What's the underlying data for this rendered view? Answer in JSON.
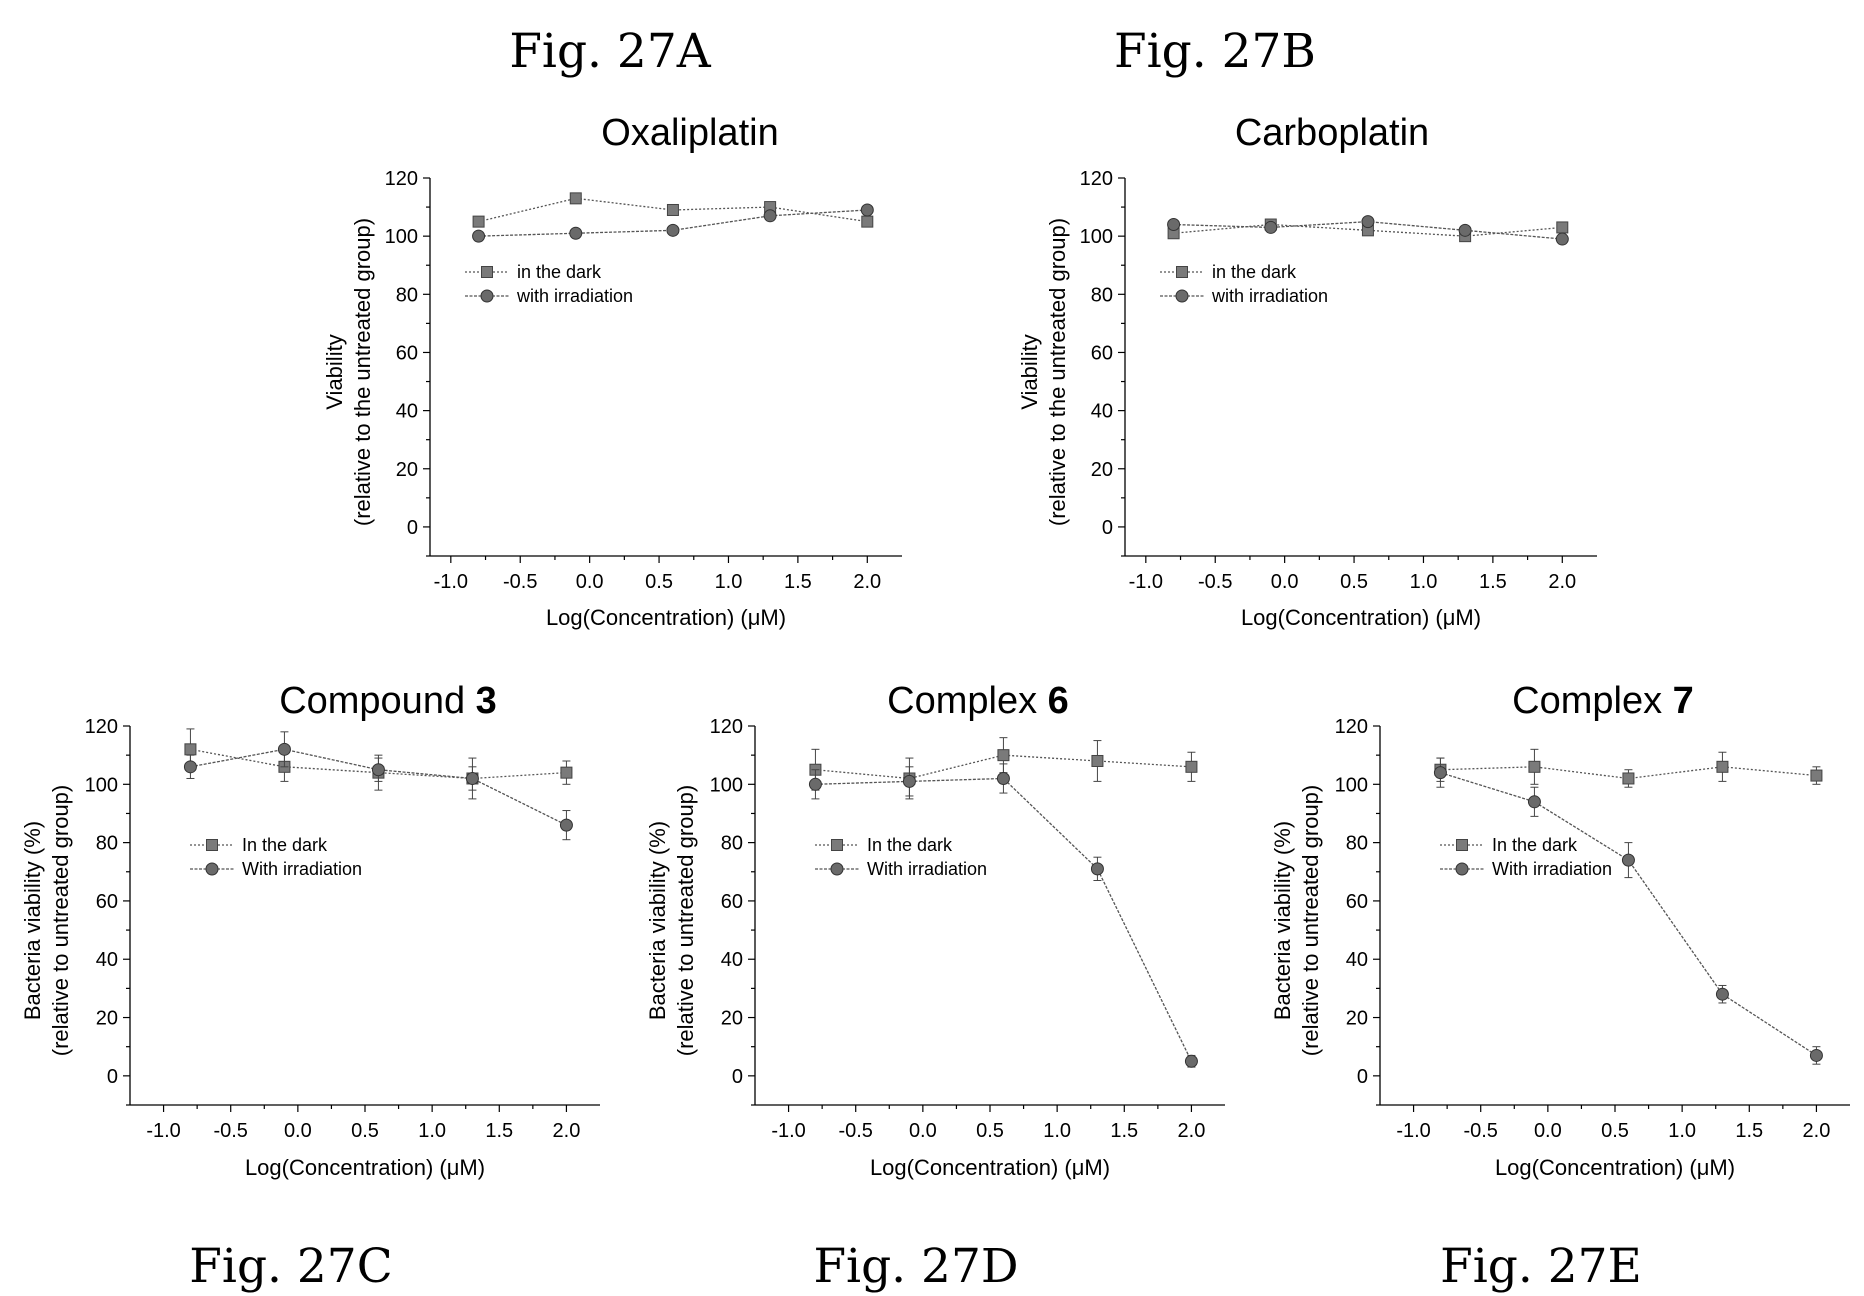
{
  "chart_data": [
    {
      "id": "27A",
      "type": "line",
      "figure_label": "Fig. 27A",
      "title": "Oxaliplatin",
      "title_bold": "",
      "xlabel": "Log(Concentration) (μM)",
      "ylabel": "Viability",
      "ylabel2": "(relative to the untreated group)",
      "xlim": [
        -1.15,
        2.25
      ],
      "ylim": [
        -10,
        120
      ],
      "xticks": [
        "-1.0",
        "-0.5",
        "0.0",
        "0.5",
        "1.0",
        "1.5",
        "2.0"
      ],
      "yticks": [
        "0",
        "20",
        "40",
        "60",
        "80",
        "100",
        "120"
      ],
      "x": [
        -0.8,
        -0.1,
        0.6,
        1.3,
        2.0
      ],
      "legend_placement": "left",
      "series": [
        {
          "name": "in the dark",
          "marker": "square",
          "values": [
            105,
            113,
            109,
            110,
            105
          ],
          "errors": [
            0,
            0,
            0,
            0,
            0
          ]
        },
        {
          "name": "with irradiation",
          "marker": "circle",
          "values": [
            100,
            101,
            102,
            107,
            109
          ],
          "errors": [
            0,
            0,
            0,
            0,
            0
          ]
        }
      ]
    },
    {
      "id": "27B",
      "type": "line",
      "figure_label": "Fig. 27B",
      "title": "Carboplatin",
      "title_bold": "",
      "xlabel": "Log(Concentration) (μM)",
      "ylabel": "Viability",
      "ylabel2": "(relative to the untreated group)",
      "xlim": [
        -1.15,
        2.25
      ],
      "ylim": [
        -10,
        120
      ],
      "xticks": [
        "-1.0",
        "-0.5",
        "0.0",
        "0.5",
        "1.0",
        "1.5",
        "2.0"
      ],
      "yticks": [
        "0",
        "20",
        "40",
        "60",
        "80",
        "100",
        "120"
      ],
      "x": [
        -0.8,
        -0.1,
        0.6,
        1.3,
        2.0
      ],
      "legend_placement": "left",
      "series": [
        {
          "name": "in the dark",
          "marker": "square",
          "values": [
            101,
            104,
            102,
            100,
            103
          ],
          "errors": [
            0,
            0,
            0,
            0,
            0
          ]
        },
        {
          "name": "with irradiation",
          "marker": "circle",
          "values": [
            104,
            103,
            105,
            102,
            99
          ],
          "errors": [
            0,
            0,
            0,
            0,
            0
          ]
        }
      ]
    },
    {
      "id": "27C",
      "type": "line",
      "figure_label": "Fig. 27C",
      "title": "Compound ",
      "title_bold": "3",
      "xlabel": "Log(Concentration) (μM)",
      "ylabel": "Bacteria viability (%)",
      "ylabel2": "(relative to untreated group)",
      "xlim": [
        -1.25,
        2.25
      ],
      "ylim": [
        -10,
        120
      ],
      "xticks": [
        "-1.0",
        "-0.5",
        "0.0",
        "0.5",
        "1.0",
        "1.5",
        "2.0"
      ],
      "yticks": [
        "0",
        "20",
        "40",
        "60",
        "80",
        "100",
        "120"
      ],
      "x": [
        -0.8,
        -0.1,
        0.6,
        1.3,
        2.0
      ],
      "legend_placement": "left",
      "series": [
        {
          "name": "In the dark",
          "marker": "square",
          "values": [
            112,
            106,
            104,
            102,
            104
          ],
          "errors": [
            7,
            5,
            6,
            7,
            4
          ]
        },
        {
          "name": "With irradiation",
          "marker": "circle",
          "values": [
            106,
            112,
            105,
            102,
            86
          ],
          "errors": [
            4,
            6,
            4,
            4,
            5
          ]
        }
      ]
    },
    {
      "id": "27D",
      "type": "line",
      "figure_label": "Fig. 27D",
      "title": "Complex ",
      "title_bold": "6",
      "xlabel": "Log(Concentration) (μM)",
      "ylabel": "Bacteria viability (%)",
      "ylabel2": "(relative to untreated group)",
      "xlim": [
        -1.25,
        2.25
      ],
      "ylim": [
        -10,
        120
      ],
      "xticks": [
        "-1.0",
        "-0.5",
        "0.0",
        "0.5",
        "1.0",
        "1.5",
        "2.0"
      ],
      "yticks": [
        "0",
        "20",
        "40",
        "60",
        "80",
        "100",
        "120"
      ],
      "x": [
        -0.8,
        -0.1,
        0.6,
        1.3,
        2.0
      ],
      "legend_placement": "left",
      "series": [
        {
          "name": "In the dark",
          "marker": "square",
          "values": [
            105,
            102,
            110,
            108,
            106
          ],
          "errors": [
            7,
            7,
            6,
            7,
            5
          ]
        },
        {
          "name": "With irradiation",
          "marker": "circle",
          "values": [
            100,
            101,
            102,
            71,
            5
          ],
          "errors": [
            5,
            5,
            5,
            4,
            2
          ]
        }
      ]
    },
    {
      "id": "27E",
      "type": "line",
      "figure_label": "Fig. 27E",
      "title": "Complex ",
      "title_bold": "7",
      "xlabel": "Log(Concentration) (μM)",
      "ylabel": "Bacteria viability (%)",
      "ylabel2": "(relative to untreated group)",
      "xlim": [
        -1.25,
        2.25
      ],
      "ylim": [
        -10,
        120
      ],
      "xticks": [
        "-1.0",
        "-0.5",
        "0.0",
        "0.5",
        "1.0",
        "1.5",
        "2.0"
      ],
      "yticks": [
        "0",
        "20",
        "40",
        "60",
        "80",
        "100",
        "120"
      ],
      "x": [
        -0.8,
        -0.1,
        0.6,
        1.3,
        2.0
      ],
      "legend_placement": "left",
      "series": [
        {
          "name": "In the dark",
          "marker": "square",
          "values": [
            105,
            106,
            102,
            106,
            103
          ],
          "errors": [
            4,
            6,
            3,
            5,
            3
          ]
        },
        {
          "name": "With irradiation",
          "marker": "circle",
          "values": [
            104,
            94,
            74,
            28,
            7
          ],
          "errors": [
            5,
            5,
            6,
            3,
            3
          ]
        }
      ]
    }
  ]
}
